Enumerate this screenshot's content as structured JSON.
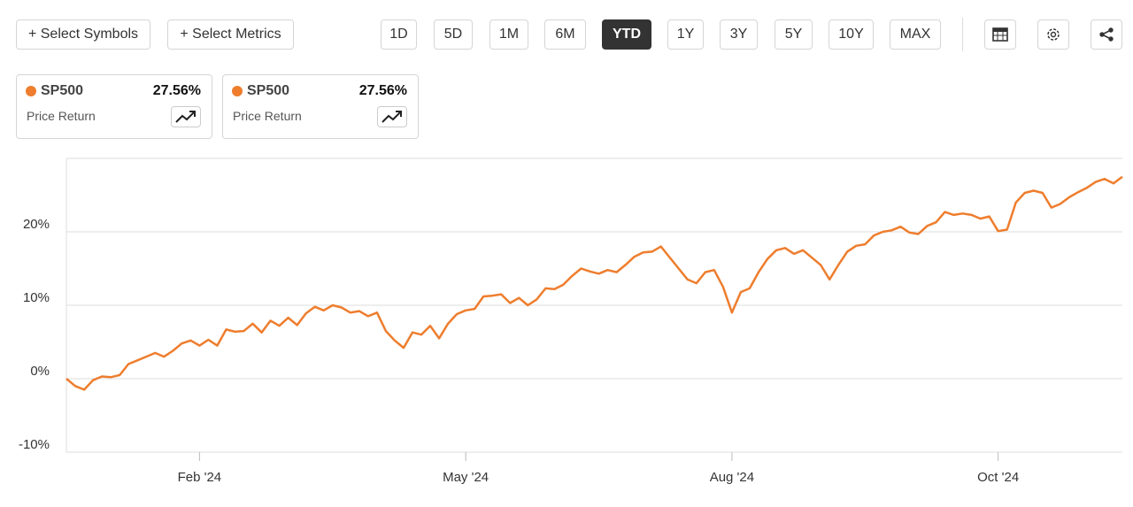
{
  "toolbar": {
    "actions": [
      "+ Select Symbols",
      "+ Select Metrics"
    ],
    "periods": [
      "1D",
      "5D",
      "1M",
      "6M",
      "YTD",
      "1Y",
      "3Y",
      "5Y",
      "10Y",
      "MAX"
    ],
    "active_period": 4
  },
  "cards": [
    {
      "symbol": "SP500",
      "value": "27.56%",
      "metric": "Price Return"
    },
    {
      "symbol": "SP500",
      "value": "27.56%",
      "metric": "Price Return"
    }
  ],
  "chart_data": {
    "type": "line",
    "color": "#ee7d2d",
    "grid": true,
    "ylim": [
      -10,
      30
    ],
    "yticks": [
      {
        "value": -10,
        "label": "-10%"
      },
      {
        "value": 0,
        "label": "0%"
      },
      {
        "value": 10,
        "label": "10%"
      },
      {
        "value": 20,
        "label": "20%"
      },
      30
    ],
    "categories": [
      null,
      null,
      null,
      null,
      null,
      null,
      null,
      null,
      null,
      null,
      null,
      null,
      null,
      null,
      null,
      "Feb '24",
      null,
      null,
      null,
      null,
      null,
      null,
      null,
      null,
      null,
      null,
      null,
      null,
      null,
      null,
      null,
      null,
      null,
      null,
      null,
      null,
      null,
      null,
      null,
      null,
      null,
      null,
      null,
      null,
      null,
      "May '24",
      null,
      null,
      null,
      null,
      null,
      null,
      null,
      null,
      null,
      null,
      null,
      null,
      null,
      null,
      null,
      null,
      null,
      null,
      null,
      null,
      null,
      null,
      null,
      null,
      null,
      null,
      null,
      null,
      null,
      "Aug '24",
      null,
      null,
      null,
      null,
      null,
      null,
      null,
      null,
      null,
      null,
      null,
      null,
      null,
      null,
      null,
      null,
      null,
      null,
      null,
      null,
      null,
      null,
      null,
      null,
      null,
      null,
      null,
      null,
      null,
      "Oct '24",
      null,
      null,
      null,
      null,
      null,
      null,
      null,
      null,
      null,
      null,
      null,
      null,
      null,
      null
    ],
    "values": [
      0,
      -1.0,
      -1.5,
      -0.2,
      0.3,
      0.2,
      0.5,
      2.0,
      2.5,
      3.0,
      3.5,
      3.0,
      3.8,
      4.8,
      5.2,
      4.5,
      5.3,
      4.5,
      6.7,
      6.4,
      6.5,
      7.5,
      6.3,
      7.9,
      7.2,
      8.3,
      7.3,
      8.9,
      9.8,
      9.3,
      10.0,
      9.7,
      9.0,
      9.2,
      8.5,
      9.0,
      6.5,
      5.2,
      4.2,
      6.3,
      6.0,
      7.2,
      5.5,
      7.5,
      8.8,
      9.3,
      9.5,
      11.2,
      11.3,
      11.5,
      10.3,
      11.0,
      10.0,
      10.8,
      12.3,
      12.2,
      12.8,
      14.0,
      15.0,
      14.6,
      14.3,
      14.8,
      14.5,
      15.5,
      16.6,
      17.2,
      17.3,
      18.0,
      16.5,
      15.0,
      13.5,
      13.0,
      14.5,
      14.8,
      12.5,
      9.0,
      11.8,
      12.3,
      14.5,
      16.3,
      17.5,
      17.8,
      17.0,
      17.5,
      16.5,
      15.5,
      13.5,
      15.5,
      17.3,
      18.1,
      18.3,
      19.5,
      20.0,
      20.2,
      20.7,
      19.9,
      19.7,
      20.8,
      21.3,
      22.7,
      22.3,
      22.5,
      22.3,
      21.8,
      22.1,
      20.1,
      20.3,
      24.0,
      25.3,
      25.6,
      25.3,
      23.3,
      23.8,
      24.7,
      25.4,
      26.0,
      26.8,
      27.2,
      26.6,
      27.5
    ]
  }
}
